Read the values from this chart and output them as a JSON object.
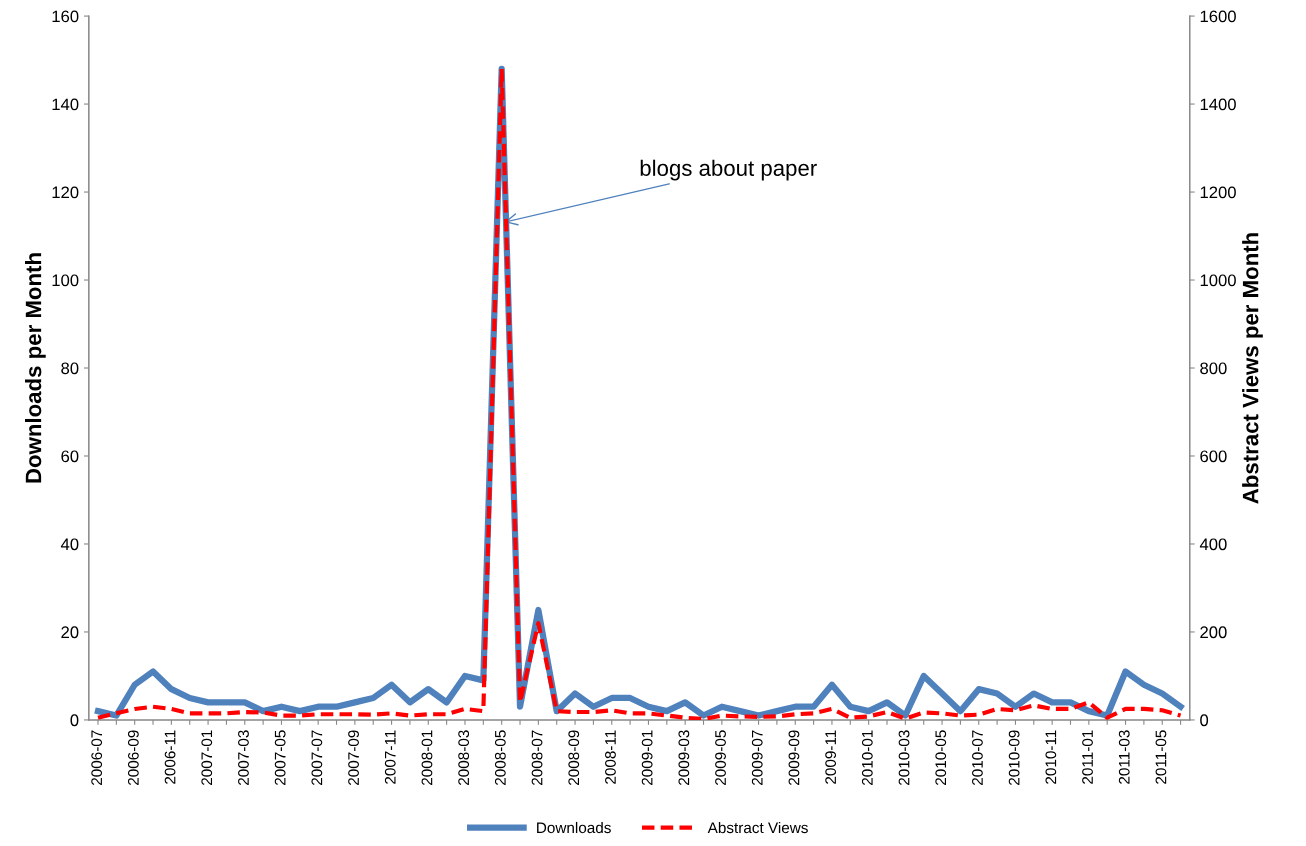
{
  "chart_data": {
    "type": "line",
    "ylabel": "Downloads per Month",
    "y2label": "Abstract Views per Month",
    "categories": [
      "2006-07",
      null,
      "2006-09",
      null,
      "2006-11",
      null,
      "2007-01",
      null,
      "2007-03",
      null,
      "2007-05",
      null,
      "2007-07",
      null,
      "2007-09",
      null,
      "2007-11",
      null,
      "2008-01",
      null,
      "2008-03",
      null,
      "2008-05",
      null,
      "2008-07",
      null,
      "2008-09",
      null,
      "2008-11",
      null,
      "2009-01",
      null,
      "2009-03",
      null,
      "2009-05",
      null,
      "2009-07",
      null,
      "2009-09",
      null,
      "2009-11",
      null,
      "2010-01",
      null,
      "2010-03",
      null,
      "2010-05",
      null,
      "2010-07",
      null,
      "2010-09",
      null,
      "2010-11",
      null,
      "2011-01",
      null,
      "2011-03",
      null,
      "2011-05",
      null
    ],
    "series": [
      {
        "name": "Downloads",
        "color": "#4f81bd",
        "line_style": "solid",
        "values": [
          2,
          1,
          8,
          11,
          7,
          5,
          4,
          4,
          4,
          2,
          3,
          2,
          3,
          3,
          4,
          5,
          8,
          4,
          7,
          4,
          10,
          9,
          148,
          3,
          25,
          2,
          6,
          3,
          5,
          5,
          3,
          2,
          4,
          1,
          3,
          2,
          1,
          2,
          3,
          3,
          8,
          3,
          2,
          4,
          1,
          10,
          6,
          2,
          7,
          6,
          3,
          6,
          4,
          4,
          2,
          1,
          11,
          8,
          6,
          3
        ]
      },
      {
        "name": "Abstract Views",
        "color": "#ff0000",
        "line_style": "dashed",
        "axis": "y2",
        "values": [
          5,
          15,
          25,
          30,
          25,
          15,
          15,
          15,
          18,
          17,
          10,
          10,
          13,
          13,
          13,
          12,
          15,
          10,
          13,
          13,
          25,
          20,
          1480,
          40,
          220,
          20,
          18,
          18,
          22,
          15,
          15,
          10,
          5,
          2,
          10,
          8,
          7,
          8,
          13,
          15,
          25,
          5,
          8,
          18,
          3,
          17,
          15,
          10,
          12,
          25,
          22,
          33,
          25,
          25,
          40,
          5,
          25,
          25,
          22,
          10
        ]
      }
    ],
    "ylim": [
      0,
      160
    ],
    "yticks": [
      0,
      20,
      40,
      60,
      80,
      100,
      120,
      140,
      160
    ],
    "y2lim": [
      0,
      1600
    ],
    "y2ticks": [
      0,
      200,
      400,
      600,
      800,
      1000,
      1200,
      1400,
      1600
    ],
    "annotations": [
      {
        "text": "blogs about paper",
        "x": "2008-05",
        "y": 113
      }
    ],
    "legend": "bottom",
    "grid": false,
    "marker": "none"
  }
}
